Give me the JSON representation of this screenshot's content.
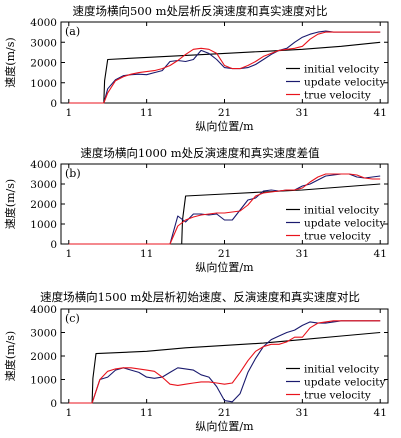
{
  "chart_data": [
    {
      "type": "line",
      "panel_label": "(a)",
      "title": "速度场横向500 m处层析反演速度和真实速度对比",
      "xlabel": "纵向位置/m",
      "ylabel": "速度(m/s)",
      "xlim": [
        0,
        42
      ],
      "ylim": [
        0,
        4000
      ],
      "xticks": [
        1,
        11,
        21,
        31,
        41
      ],
      "yticks": [
        0,
        1000,
        2000,
        3000,
        4000
      ],
      "legend_position": "lower-right",
      "series": [
        {
          "name": "initial velocity",
          "color": "#000000",
          "x": [
            1,
            5.5,
            5.6,
            6,
            11,
            16,
            21,
            26,
            31,
            36,
            41
          ],
          "y": [
            0,
            0,
            1100,
            2150,
            2250,
            2350,
            2450,
            2550,
            2650,
            2800,
            3000
          ]
        },
        {
          "name": "update velocity",
          "color": "#1a1a6e",
          "x": [
            1,
            5.5,
            6,
            7,
            8,
            9,
            10,
            11,
            12,
            13,
            14,
            15,
            16,
            17,
            18,
            19,
            20,
            21,
            22,
            23,
            24,
            25,
            26,
            27,
            28,
            29,
            30,
            31,
            32,
            33,
            34,
            35,
            36,
            37,
            38,
            39,
            40,
            41
          ],
          "y": [
            0,
            0,
            700,
            1150,
            1350,
            1400,
            1420,
            1400,
            1500,
            1600,
            2050,
            2100,
            2050,
            2150,
            2600,
            2450,
            2150,
            1750,
            1700,
            1700,
            1750,
            1900,
            2150,
            2400,
            2600,
            2700,
            3000,
            3250,
            3400,
            3500,
            3550,
            3500,
            3500,
            3500,
            3500,
            3500,
            3500,
            3500
          ]
        },
        {
          "name": "true velocity",
          "color": "#e8131c",
          "x": [
            1,
            5.5,
            6,
            7,
            8,
            9,
            10,
            11,
            12,
            13,
            14,
            15,
            16,
            17,
            18,
            19,
            20,
            21,
            22,
            23,
            24,
            25,
            26,
            27,
            28,
            29,
            30,
            31,
            32,
            33,
            34,
            35,
            36,
            37,
            38,
            39,
            40,
            41
          ],
          "y": [
            0,
            0,
            500,
            1100,
            1300,
            1420,
            1500,
            1550,
            1600,
            1700,
            1850,
            2100,
            2400,
            2650,
            2700,
            2650,
            2450,
            1850,
            1700,
            1700,
            1850,
            2050,
            2300,
            2450,
            2600,
            2650,
            2700,
            2800,
            3150,
            3400,
            3500,
            3500,
            3500,
            3500,
            3500,
            3500,
            3500,
            3500
          ]
        }
      ]
    },
    {
      "type": "line",
      "panel_label": "(b)",
      "title": "速度场横向1000 m处反演速度和真实速度差值",
      "xlabel": "纵向位置/m",
      "ylabel": "速度(m/s)",
      "xlim": [
        0,
        42
      ],
      "ylim": [
        0,
        4000
      ],
      "xticks": [
        1,
        11,
        21,
        31,
        41
      ],
      "yticks": [
        0,
        1000,
        2000,
        3000,
        4000
      ],
      "legend_position": "lower-right",
      "series": [
        {
          "name": "initial velocity",
          "color": "#000000",
          "x": [
            1,
            15.5,
            15.6,
            16,
            21,
            26,
            31,
            36,
            41
          ],
          "y": [
            0,
            0,
            1200,
            2400,
            2500,
            2600,
            2700,
            2850,
            3000
          ]
        },
        {
          "name": "update velocity",
          "color": "#1a1a6e",
          "x": [
            1,
            14,
            15,
            16,
            17,
            18,
            19,
            20,
            21,
            22,
            23,
            24,
            25,
            26,
            27,
            28,
            29,
            30,
            31,
            32,
            33,
            34,
            35,
            36,
            37,
            38,
            39,
            40,
            41
          ],
          "y": [
            0,
            0,
            1400,
            1100,
            1500,
            1500,
            1450,
            1500,
            1200,
            1200,
            1700,
            2200,
            2300,
            2650,
            2700,
            2650,
            2700,
            2700,
            2900,
            3000,
            3200,
            3400,
            3450,
            3500,
            3500,
            3350,
            3300,
            3350,
            3400
          ]
        },
        {
          "name": "true velocity",
          "color": "#e8131c",
          "x": [
            1,
            14,
            15,
            16,
            17,
            18,
            19,
            20,
            21,
            22,
            23,
            24,
            25,
            26,
            27,
            28,
            29,
            30,
            31,
            32,
            33,
            34,
            35,
            36,
            37,
            38,
            39,
            40,
            41
          ],
          "y": [
            0,
            0,
            900,
            1200,
            1350,
            1450,
            1500,
            1550,
            1550,
            1600,
            1650,
            1950,
            2400,
            2550,
            2600,
            2650,
            2700,
            2700,
            2800,
            3100,
            3350,
            3500,
            3500,
            3500,
            3500,
            3450,
            3300,
            3250,
            3250
          ]
        }
      ]
    },
    {
      "type": "line",
      "panel_label": "(c)",
      "title": "速度场横向1500 m处层析初始速度、反演速度和真实速度对比",
      "xlabel": "纵向位置/m",
      "ylabel": "速度(m/s)",
      "xlim": [
        0,
        42
      ],
      "ylim": [
        0,
        4000
      ],
      "xticks": [
        1,
        11,
        21,
        31,
        41
      ],
      "yticks": [
        0,
        1000,
        2000,
        3000,
        4000
      ],
      "legend_position": "lower-right",
      "series": [
        {
          "name": "initial velocity",
          "color": "#000000",
          "x": [
            1,
            4,
            4.1,
            4.5,
            11,
            16,
            21,
            26,
            31,
            36,
            41
          ],
          "y": [
            0,
            0,
            1050,
            2100,
            2200,
            2350,
            2450,
            2550,
            2700,
            2850,
            3000
          ]
        },
        {
          "name": "update velocity",
          "color": "#1a1a6e",
          "x": [
            1,
            4,
            5,
            6,
            7,
            8,
            9,
            10,
            11,
            12,
            13,
            14,
            15,
            16,
            17,
            18,
            19,
            20,
            21,
            22,
            23,
            24,
            25,
            26,
            27,
            28,
            29,
            30,
            31,
            32,
            33,
            34,
            35,
            36,
            37,
            38,
            39,
            40,
            41
          ],
          "y": [
            0,
            0,
            1000,
            1100,
            1400,
            1500,
            1400,
            1300,
            1100,
            1050,
            1100,
            1300,
            1500,
            1450,
            1400,
            1200,
            1100,
            700,
            100,
            50,
            400,
            1300,
            1900,
            2400,
            2700,
            2850,
            3000,
            3100,
            3300,
            3450,
            3400,
            3400,
            3450,
            3500,
            3500,
            3500,
            3500,
            3500,
            3500
          ]
        },
        {
          "name": "true velocity",
          "color": "#e8131c",
          "x": [
            1,
            4,
            5,
            6,
            7,
            8,
            9,
            10,
            11,
            12,
            13,
            14,
            15,
            16,
            17,
            18,
            19,
            20,
            21,
            22,
            23,
            24,
            25,
            26,
            27,
            28,
            29,
            30,
            31,
            32,
            33,
            34,
            35,
            36,
            37,
            38,
            39,
            40,
            41
          ],
          "y": [
            0,
            0,
            1000,
            1350,
            1450,
            1500,
            1500,
            1450,
            1400,
            1350,
            1100,
            800,
            750,
            800,
            850,
            900,
            900,
            850,
            800,
            850,
            1300,
            1800,
            2200,
            2400,
            2500,
            2500,
            2600,
            2800,
            2800,
            3200,
            3400,
            3450,
            3500,
            3500,
            3500,
            3500,
            3500,
            3500,
            3500
          ]
        }
      ]
    }
  ]
}
